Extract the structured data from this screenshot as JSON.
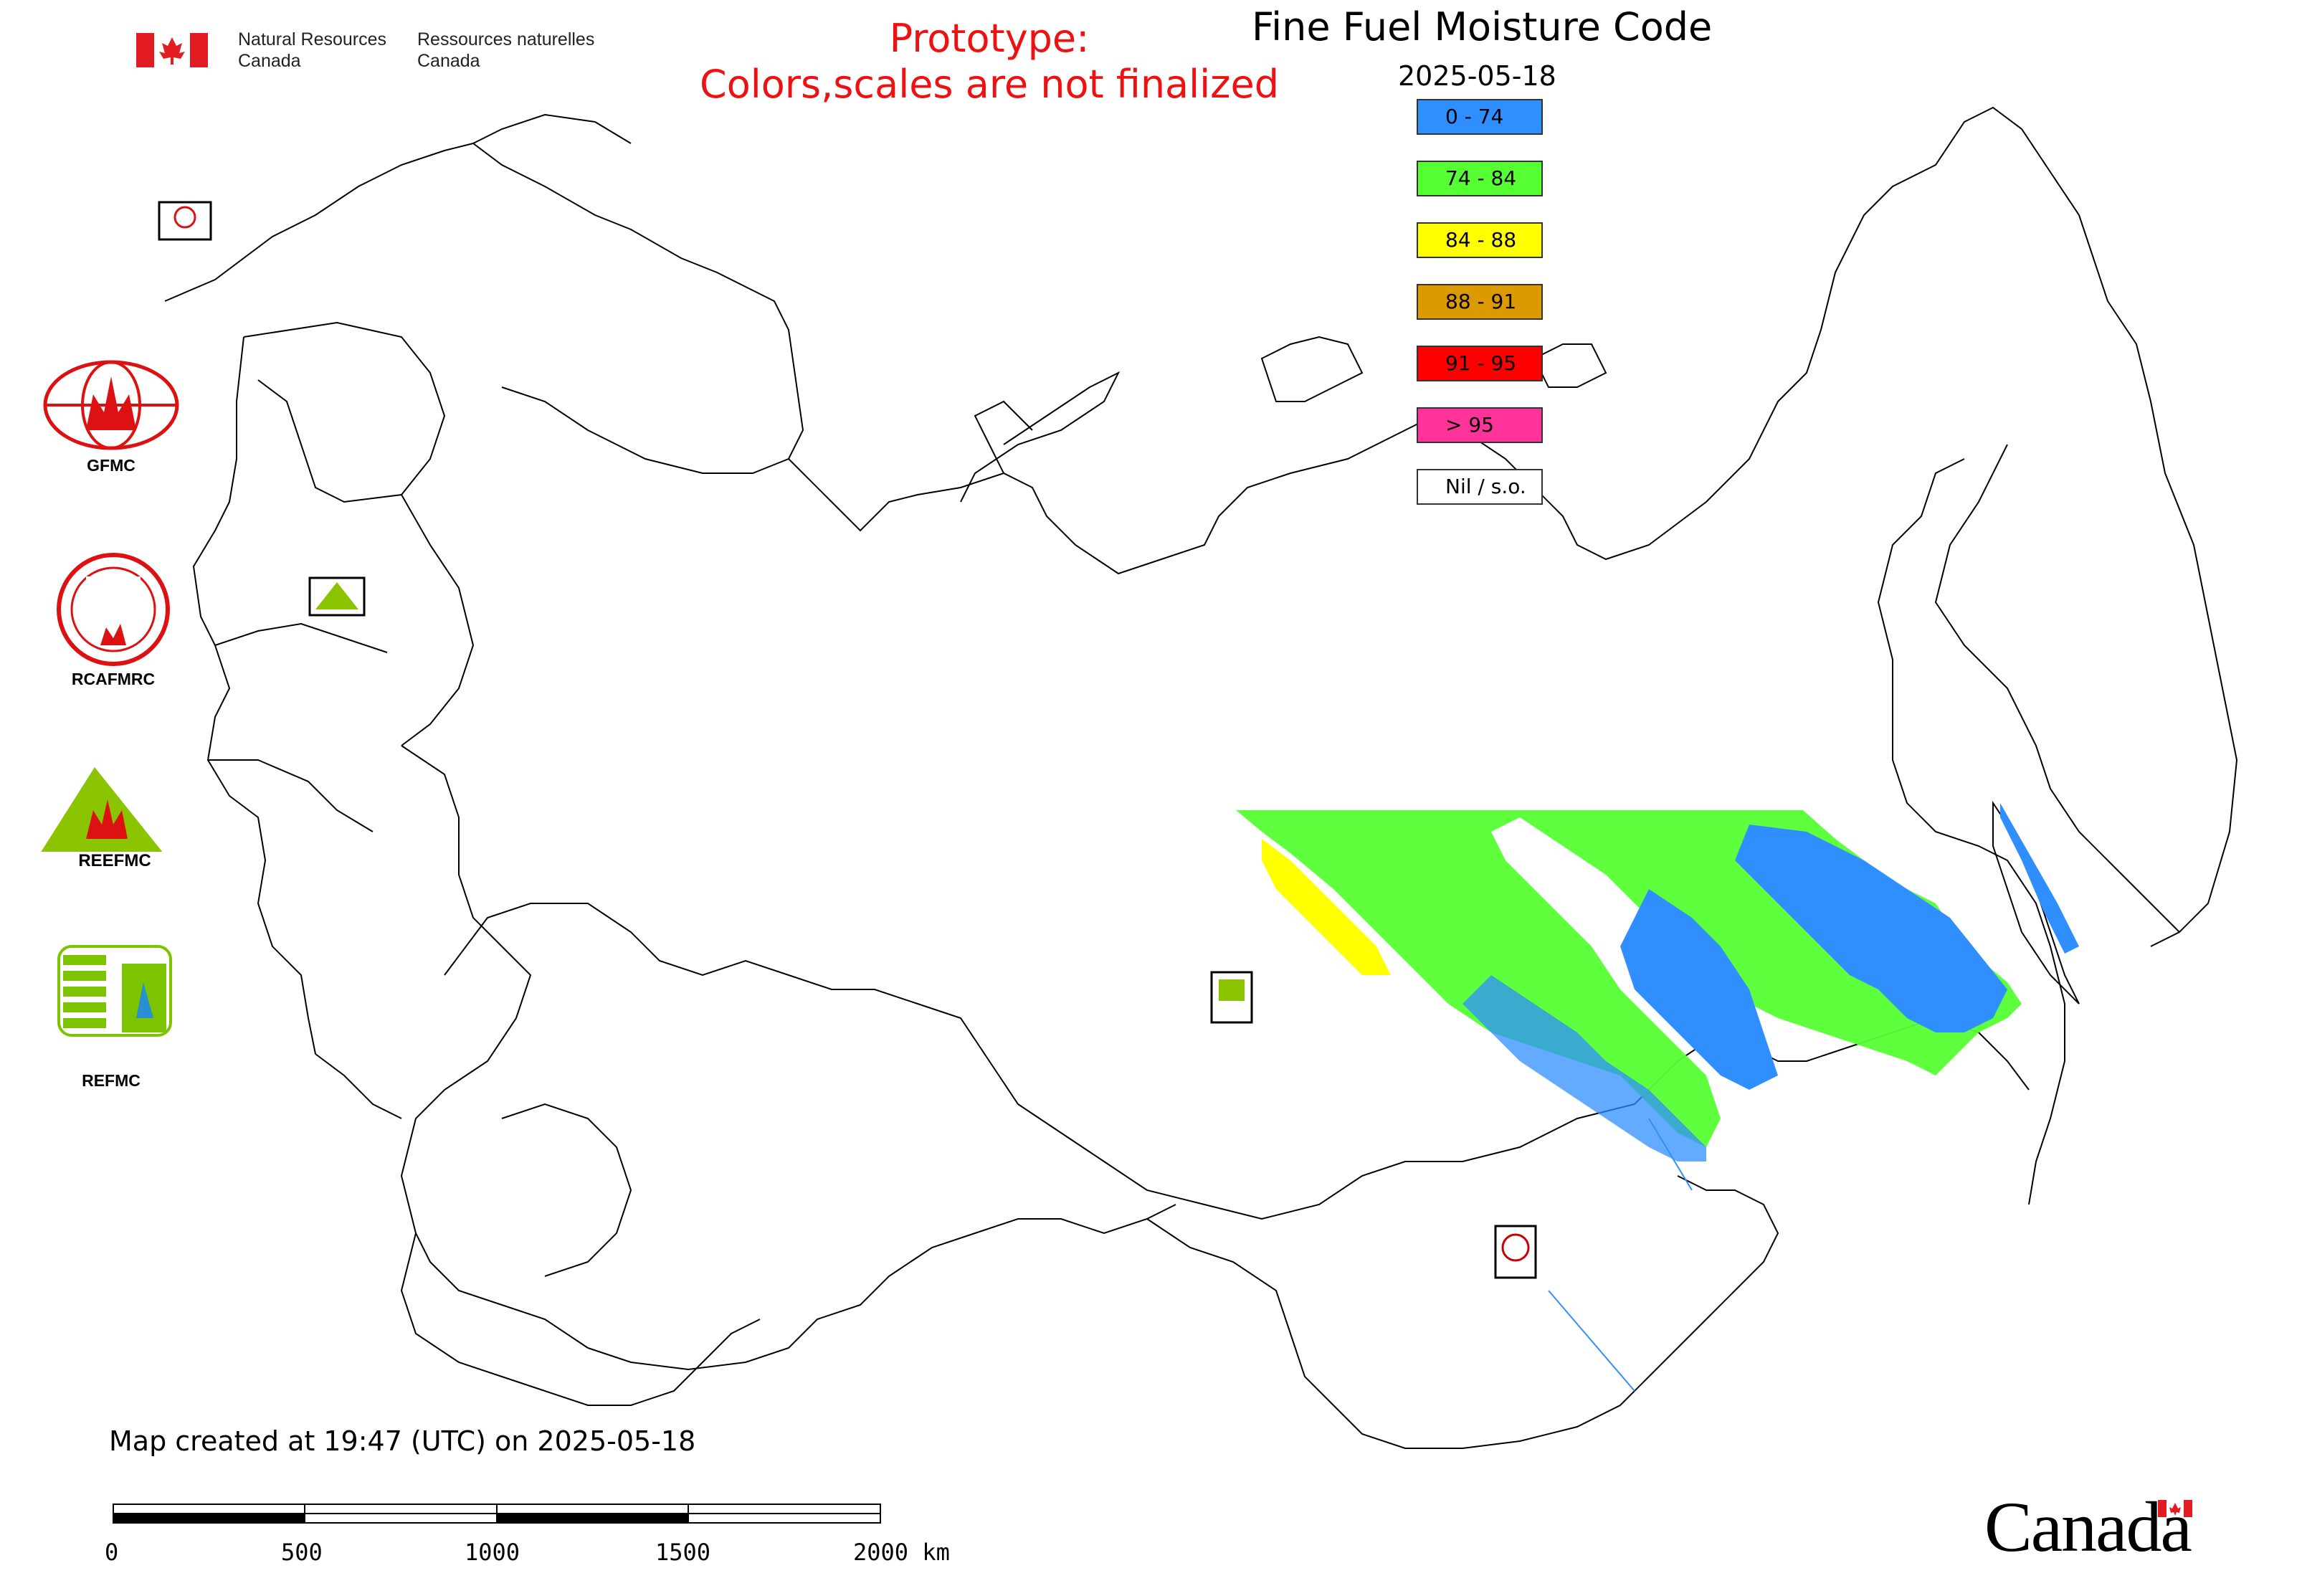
{
  "header": {
    "nrcan_en_line1": "Natural Resources",
    "nrcan_en_line2": "Canada",
    "nrcan_fr_line1": "Ressources naturelles",
    "nrcan_fr_line2": "Canada"
  },
  "prototype": {
    "line1": "Prototype:",
    "line2": "Colors,scales are not finalized",
    "color": "#ee1111"
  },
  "title": "Fine Fuel Moisture Code",
  "date": "2025-05-18",
  "legend": [
    {
      "label": "0 - 74",
      "color": "#2f8fff"
    },
    {
      "label": "74 - 84",
      "color": "#55ff33"
    },
    {
      "label": "84 - 88",
      "color": "#ffff00"
    },
    {
      "label": "88 - 91",
      "color": "#dd9900"
    },
    {
      "label": "91 - 95",
      "color": "#ff0000"
    },
    {
      "label": "> 95",
      "color": "#ff3399"
    },
    {
      "label": "Nil / s.o.",
      "color": "#ffffff"
    }
  ],
  "logos": {
    "gfmc": "GFMC",
    "rcafmrc": "RCAFMRC",
    "reefmc": "REEFMC",
    "refmc": "REFMC"
  },
  "footer": {
    "created": "Map created at 19:47 (UTC) on 2025-05-18",
    "scale_ticks": [
      "0",
      "500",
      "1000",
      "1500",
      "2000 km"
    ]
  },
  "wordmark": "Canada"
}
